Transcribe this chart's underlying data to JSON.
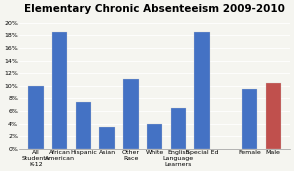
{
  "title": "Elementary Chronic Absenteeism 2009-2010",
  "categories": [
    "All\nStudents\nK-12",
    "African\nAmerican",
    "Hispanic",
    "Asian",
    "Other\nRace",
    "White",
    "English\nLanguage\nLearners",
    "Special Ed",
    "Female",
    "Male"
  ],
  "values": [
    10.0,
    18.5,
    7.5,
    3.5,
    11.0,
    4.0,
    6.5,
    18.5,
    9.5,
    10.5
  ],
  "bar_colors": [
    "#4472C4",
    "#4472C4",
    "#4472C4",
    "#4472C4",
    "#4472C4",
    "#4472C4",
    "#4472C4",
    "#4472C4",
    "#4472C4",
    "#C0504D"
  ],
  "x_positions": [
    0,
    1,
    2,
    3,
    4,
    5,
    6,
    7,
    9,
    10
  ],
  "ylim": [
    0,
    21
  ],
  "yticks": [
    0,
    2,
    4,
    6,
    8,
    10,
    12,
    14,
    16,
    18,
    20
  ],
  "ytick_labels": [
    "0%",
    "2%",
    "4%",
    "6%",
    "8%",
    "10%",
    "12%",
    "14%",
    "16%",
    "18%",
    "20%"
  ],
  "background_color": "#f5f5f0",
  "plot_bg_color": "#f5f5f0",
  "title_fontsize": 7.5,
  "tick_fontsize": 4.5,
  "bar_width": 0.65
}
